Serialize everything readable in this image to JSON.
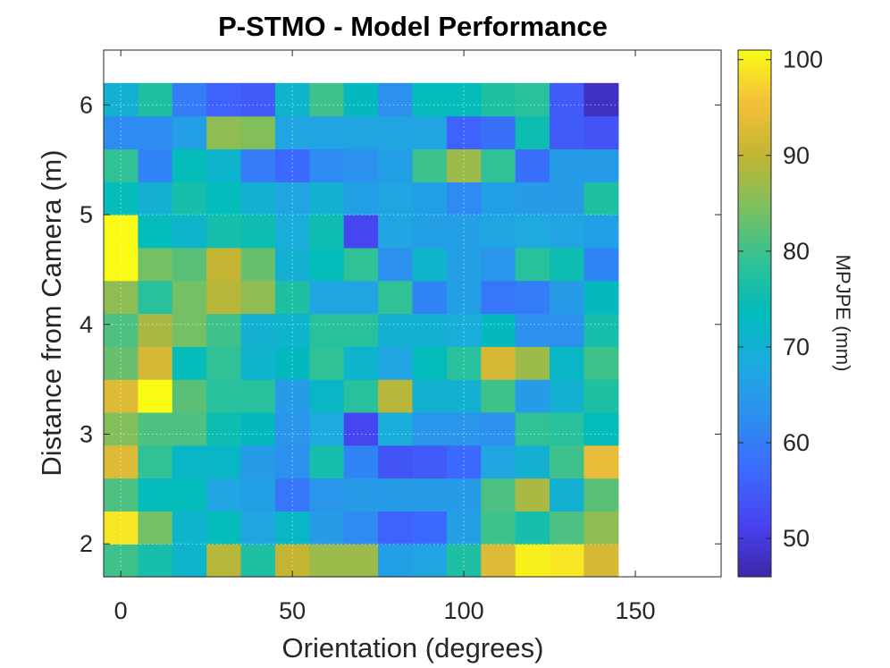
{
  "chart_data": {
    "type": "heatmap",
    "title": "P-STMO - Model Performance",
    "xlabel": "Orientation (degrees)",
    "ylabel": "Distance from Camera (m)",
    "colorbar_label": "MPJPE (mm)",
    "x_start": -5,
    "x_step": 10,
    "xlim": [
      -5,
      175
    ],
    "y_start": 1.7,
    "y_step": 0.3,
    "ylim": [
      1.7,
      6.5
    ],
    "clim": [
      46,
      101
    ],
    "x_ticks": [
      0,
      50,
      100,
      150
    ],
    "y_ticks": [
      2,
      3,
      4,
      5,
      6
    ],
    "colorbar_ticks": [
      50,
      60,
      70,
      80,
      90,
      100
    ],
    "grid": true,
    "colormap": [
      "#3e26a8",
      "#4743f0",
      "#3c69fd",
      "#2d8ef0",
      "#1eaadf",
      "#00bbbc",
      "#31c196",
      "#7cc05f",
      "#c3b533",
      "#f4c03b",
      "#f9fb15"
    ],
    "rows": [
      [
        80,
        76,
        71,
        89,
        77,
        90,
        87,
        87,
        66,
        67,
        77,
        93,
        100,
        99,
        92
      ],
      [
        99,
        84,
        71,
        74,
        67,
        72,
        65,
        62,
        56,
        57,
        66,
        80,
        76,
        81,
        86
      ],
      [
        81,
        74,
        74,
        67,
        66,
        59,
        64,
        65,
        65,
        65,
        65,
        81,
        88,
        70,
        82
      ],
      [
        93,
        79,
        72,
        72,
        65,
        63,
        76,
        61,
        54,
        55,
        57,
        67,
        70,
        80,
        94
      ],
      [
        85,
        81,
        81,
        75,
        73,
        64,
        68,
        52,
        69,
        64,
        64,
        63,
        79,
        78,
        74
      ],
      [
        93,
        101,
        82,
        78,
        78,
        65,
        72,
        78,
        89,
        70,
        70,
        80,
        65,
        70,
        77
      ],
      [
        83,
        92,
        74,
        79,
        71,
        73,
        79,
        71,
        67,
        74,
        78,
        92,
        87,
        72,
        80
      ],
      [
        81,
        88,
        84,
        80,
        70,
        71,
        78,
        78,
        70,
        70,
        69,
        73,
        63,
        63,
        76
      ],
      [
        86,
        78,
        84,
        89,
        86,
        77,
        67,
        67,
        79,
        61,
        66,
        59,
        60,
        65,
        73
      ],
      [
        101,
        84,
        82,
        90,
        83,
        70,
        74,
        79,
        63,
        71,
        66,
        64,
        78,
        75,
        61
      ],
      [
        101,
        74,
        71,
        76,
        75,
        69,
        75,
        52,
        67,
        66,
        66,
        67,
        68,
        67,
        66
      ],
      [
        74,
        70,
        76,
        74,
        70,
        67,
        70,
        66,
        67,
        66,
        62,
        66,
        65,
        65,
        77
      ],
      [
        79,
        61,
        74,
        71,
        60,
        57,
        62,
        63,
        66,
        80,
        87,
        79,
        58,
        65,
        65
      ],
      [
        62,
        62,
        66,
        86,
        85,
        67,
        67,
        67,
        67,
        67,
        56,
        58,
        75,
        55,
        54
      ],
      [
        70,
        77,
        60,
        56,
        55,
        71,
        80,
        73,
        63,
        74,
        74,
        77,
        78,
        55,
        48
      ]
    ]
  }
}
